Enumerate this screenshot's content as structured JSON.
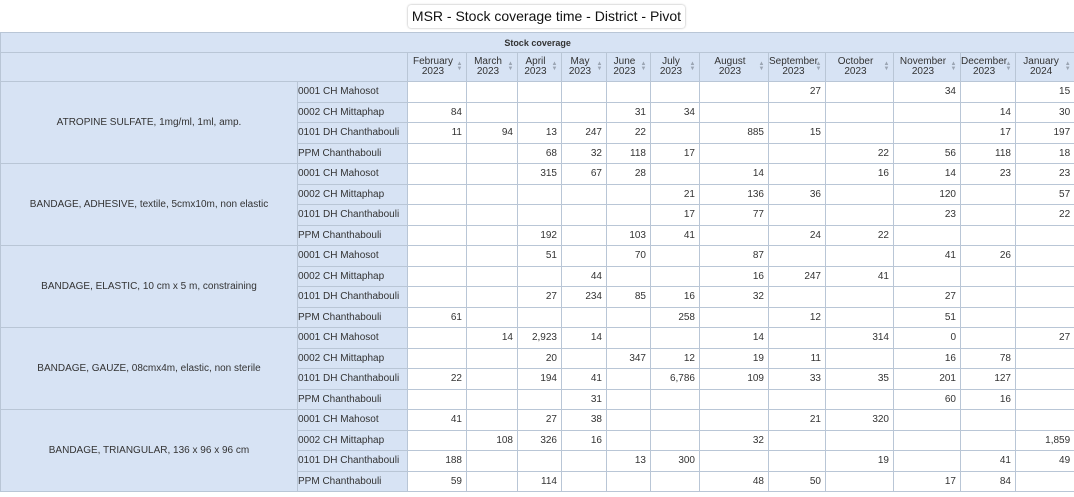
{
  "title": "MSR - Stock coverage time - District - Pivot table",
  "header": {
    "group_label": "Stock coverage"
  },
  "columns": [
    {
      "month": "February",
      "year": "2023"
    },
    {
      "month": "March",
      "year": "2023"
    },
    {
      "month": "April",
      "year": "2023"
    },
    {
      "month": "May",
      "year": "2023"
    },
    {
      "month": "June",
      "year": "2023"
    },
    {
      "month": "July",
      "year": "2023"
    },
    {
      "month": "August",
      "year": "2023"
    },
    {
      "month": "September",
      "year": "2023"
    },
    {
      "month": "October",
      "year": "2023"
    },
    {
      "month": "November",
      "year": "2023"
    },
    {
      "month": "December",
      "year": "2023"
    },
    {
      "month": "January",
      "year": "2024"
    }
  ],
  "items": [
    {
      "name": "ATROPINE SULFATE, 1mg/ml, 1ml, amp.",
      "rows": [
        {
          "district": "0001 CH Mahosot",
          "values": [
            "",
            "",
            "",
            "",
            "",
            "",
            "",
            "27",
            "",
            "34",
            "",
            "15"
          ]
        },
        {
          "district": "0002 CH Mittaphap",
          "values": [
            "84",
            "",
            "",
            "",
            "31",
            "34",
            "",
            "",
            "",
            "",
            "14",
            "30"
          ]
        },
        {
          "district": "0101 DH Chanthabouli",
          "values": [
            "11",
            "94",
            "13",
            "247",
            "22",
            "",
            "885",
            "15",
            "",
            "",
            "17",
            "197"
          ]
        },
        {
          "district": "PPM Chanthabouli",
          "values": [
            "",
            "",
            "68",
            "32",
            "118",
            "17",
            "",
            "",
            "22",
            "56",
            "118",
            "18"
          ]
        }
      ]
    },
    {
      "name": "BANDAGE, ADHESIVE, textile, 5cmx10m, non elastic",
      "rows": [
        {
          "district": "0001 CH Mahosot",
          "values": [
            "",
            "",
            "315",
            "67",
            "28",
            "",
            "14",
            "",
            "16",
            "14",
            "23",
            "23"
          ]
        },
        {
          "district": "0002 CH Mittaphap",
          "values": [
            "",
            "",
            "",
            "",
            "",
            "21",
            "136",
            "36",
            "",
            "120",
            "",
            "57"
          ]
        },
        {
          "district": "0101 DH Chanthabouli",
          "values": [
            "",
            "",
            "",
            "",
            "",
            "17",
            "77",
            "",
            "",
            "23",
            "",
            "22"
          ]
        },
        {
          "district": "PPM Chanthabouli",
          "values": [
            "",
            "",
            "192",
            "",
            "103",
            "41",
            "",
            "24",
            "22",
            "",
            "",
            ""
          ]
        }
      ]
    },
    {
      "name": "BANDAGE, ELASTIC, 10 cm x 5 m, constraining",
      "rows": [
        {
          "district": "0001 CH Mahosot",
          "values": [
            "",
            "",
            "51",
            "",
            "70",
            "",
            "87",
            "",
            "",
            "41",
            "26",
            ""
          ]
        },
        {
          "district": "0002 CH Mittaphap",
          "values": [
            "",
            "",
            "",
            "44",
            "",
            "",
            "16",
            "247",
            "41",
            "",
            "",
            ""
          ]
        },
        {
          "district": "0101 DH Chanthabouli",
          "values": [
            "",
            "",
            "27",
            "234",
            "85",
            "16",
            "32",
            "",
            "",
            "27",
            "",
            ""
          ]
        },
        {
          "district": "PPM Chanthabouli",
          "values": [
            "61",
            "",
            "",
            "",
            "",
            "258",
            "",
            "12",
            "",
            "51",
            "",
            ""
          ]
        }
      ]
    },
    {
      "name": "BANDAGE, GAUZE, 08cmx4m, elastic, non sterile",
      "rows": [
        {
          "district": "0001 CH Mahosot",
          "values": [
            "",
            "14",
            "2,923",
            "14",
            "",
            "",
            "14",
            "",
            "314",
            "0",
            "",
            "27"
          ]
        },
        {
          "district": "0002 CH Mittaphap",
          "values": [
            "",
            "",
            "20",
            "",
            "347",
            "12",
            "19",
            "11",
            "",
            "16",
            "78",
            ""
          ]
        },
        {
          "district": "0101 DH Chanthabouli",
          "values": [
            "22",
            "",
            "194",
            "41",
            "",
            "6,786",
            "109",
            "33",
            "35",
            "201",
            "127",
            ""
          ]
        },
        {
          "district": "PPM Chanthabouli",
          "values": [
            "",
            "",
            "",
            "31",
            "",
            "",
            "",
            "",
            "",
            "60",
            "16",
            ""
          ]
        }
      ]
    },
    {
      "name": "BANDAGE, TRIANGULAR, 136 x 96 x 96 cm",
      "rows": [
        {
          "district": "0001 CH Mahosot",
          "values": [
            "41",
            "",
            "27",
            "38",
            "",
            "",
            "",
            "21",
            "320",
            "",
            "",
            ""
          ]
        },
        {
          "district": "0002 CH Mittaphap",
          "values": [
            "",
            "108",
            "326",
            "16",
            "",
            "",
            "32",
            "",
            "",
            "",
            "",
            "1,859"
          ]
        },
        {
          "district": "0101 DH Chanthabouli",
          "values": [
            "188",
            "",
            "",
            "",
            "13",
            "300",
            "",
            "",
            "19",
            "",
            "41",
            "49"
          ]
        },
        {
          "district": "PPM Chanthabouli",
          "values": [
            "59",
            "",
            "114",
            "",
            "",
            "",
            "48",
            "50",
            "",
            "17",
            "84",
            ""
          ]
        }
      ]
    }
  ]
}
